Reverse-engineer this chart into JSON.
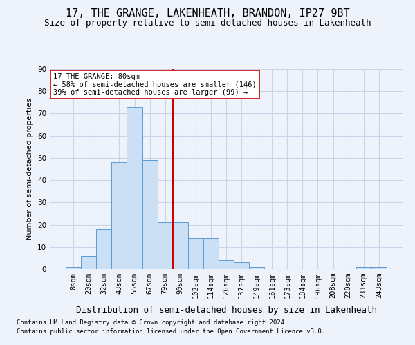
{
  "title": "17, THE GRANGE, LAKENHEATH, BRANDON, IP27 9BT",
  "subtitle": "Size of property relative to semi-detached houses in Lakenheath",
  "xlabel": "Distribution of semi-detached houses by size in Lakenheath",
  "ylabel": "Number of semi-detached properties",
  "footnote1": "Contains HM Land Registry data © Crown copyright and database right 2024.",
  "footnote2": "Contains public sector information licensed under the Open Government Licence v3.0.",
  "bar_labels": [
    "8sqm",
    "20sqm",
    "32sqm",
    "43sqm",
    "55sqm",
    "67sqm",
    "79sqm",
    "90sqm",
    "102sqm",
    "114sqm",
    "126sqm",
    "137sqm",
    "149sqm",
    "161sqm",
    "173sqm",
    "184sqm",
    "196sqm",
    "208sqm",
    "220sqm",
    "231sqm",
    "243sqm"
  ],
  "bar_values": [
    1,
    6,
    18,
    48,
    73,
    49,
    21,
    21,
    14,
    14,
    4,
    3,
    1,
    0,
    0,
    0,
    0,
    0,
    0,
    1,
    1
  ],
  "bar_color": "#cce0f5",
  "bar_edge_color": "#5b9bd5",
  "grid_color": "#c8d4e8",
  "vline_x_idx": 6,
  "vline_color": "#cc0000",
  "annotation_text": "17 THE GRANGE: 80sqm\n← 58% of semi-detached houses are smaller (146)\n39% of semi-detached houses are larger (99) →",
  "annotation_box_color": "#ffffff",
  "annotation_box_edge": "#cc0000",
  "ylim": [
    0,
    90
  ],
  "yticks": [
    0,
    10,
    20,
    30,
    40,
    50,
    60,
    70,
    80,
    90
  ],
  "title_fontsize": 11,
  "subtitle_fontsize": 9,
  "xlabel_fontsize": 9,
  "ylabel_fontsize": 8,
  "tick_fontsize": 7.5,
  "annotation_fontsize": 7.5,
  "footnote_fontsize": 6.5,
  "background_color": "#eef2fa"
}
